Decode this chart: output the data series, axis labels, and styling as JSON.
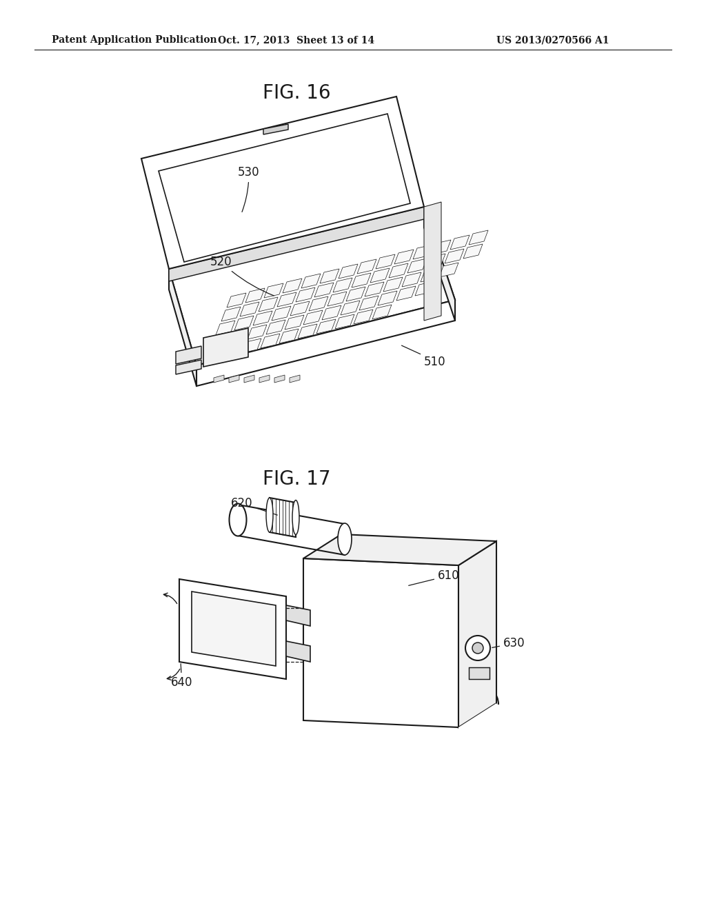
{
  "background_color": "#ffffff",
  "header_left": "Patent Application Publication",
  "header_mid": "Oct. 17, 2013  Sheet 13 of 14",
  "header_right": "US 2013/0270566 A1",
  "fig16_title": "FIG. 16",
  "fig17_title": "FIG. 17",
  "fig_width": 10.24,
  "fig_height": 13.2,
  "line_color": "#1a1a1a",
  "text_color": "#1a1a1a",
  "header_fontsize": 10,
  "fig_title_fontsize": 20,
  "label_fontsize": 12
}
